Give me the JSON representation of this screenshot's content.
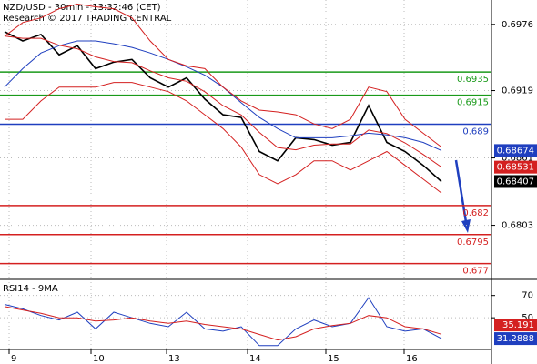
{
  "chart_data": [
    {
      "type": "line",
      "title": "NZD/USD - 30min - 13:32:46 (CET)",
      "subtitle": "Research © 2017 TRADING CENTRAL",
      "x": [
        0,
        2,
        4,
        6,
        8,
        10,
        12,
        14,
        16,
        18,
        20,
        22,
        24,
        26,
        28,
        30,
        32,
        34,
        36,
        38,
        40,
        42,
        44,
        46,
        48
      ],
      "xlim": [
        -0.5,
        53.5
      ],
      "xticks": [
        {
          "value": 0.5,
          "label": "9"
        },
        {
          "value": 9.5,
          "label": "10"
        },
        {
          "value": 17.8,
          "label": "13"
        },
        {
          "value": 26.7,
          "label": "14"
        },
        {
          "value": 35.3,
          "label": "15"
        },
        {
          "value": 43.9,
          "label": "16"
        }
      ],
      "ylim": [
        0.6758,
        0.6997
      ],
      "yticks": [
        0.6976,
        0.6919,
        0.6861,
        0.6803
      ],
      "grid": true,
      "series": [
        {
          "color": "#000000",
          "tag": true,
          "values": [
            0.69697,
            0.69617,
            0.69673,
            0.69498,
            0.69577,
            0.69379,
            0.69435,
            0.69458,
            0.693,
            0.6922,
            0.693,
            0.69117,
            0.68982,
            0.68958,
            0.68665,
            0.68585,
            0.68784,
            0.68768,
            0.6872,
            0.68744,
            0.69062,
            0.68744,
            0.68665,
            0.68546,
            0.68407
          ]
        },
        {
          "color": "#1f3fbf",
          "tag": true,
          "values": [
            0.6922,
            0.69379,
            0.69514,
            0.69577,
            0.69617,
            0.69617,
            0.69593,
            0.69562,
            0.69514,
            0.69458,
            0.69395,
            0.69323,
            0.6922,
            0.69085,
            0.68958,
            0.68863,
            0.68784,
            0.68784,
            0.68784,
            0.688,
            0.68823,
            0.68808,
            0.68784,
            0.68744,
            0.68674
          ]
        },
        {
          "color": "#d42020",
          "tag": true,
          "values": [
            0.6966,
            0.6964,
            0.6964,
            0.6958,
            0.6955,
            0.6948,
            0.6944,
            0.6943,
            0.6936,
            0.693,
            0.6927,
            0.6918,
            0.6906,
            0.6898,
            0.6883,
            0.687,
            0.6868,
            0.6872,
            0.6873,
            0.6873,
            0.6885,
            0.6882,
            0.6874,
            0.6864,
            0.68531
          ]
        },
        {
          "color": "#d42020",
          "tag": false,
          "values": [
            0.69657,
            0.69776,
            0.69816,
            0.69895,
            0.69935,
            0.69911,
            0.69895,
            0.69816,
            0.69617,
            0.69458,
            0.69403,
            0.69379,
            0.6922,
            0.69101,
            0.69022,
            0.69006,
            0.68982,
            0.68903,
            0.68863,
            0.68943,
            0.6922,
            0.69181,
            0.68943,
            0.68823,
            0.68704
          ]
        },
        {
          "color": "#d42020",
          "tag": false,
          "values": [
            0.68943,
            0.68943,
            0.69101,
            0.6922,
            0.6922,
            0.6922,
            0.6926,
            0.6926,
            0.6922,
            0.69181,
            0.69101,
            0.68982,
            0.68863,
            0.68704,
            0.68466,
            0.68387,
            0.68466,
            0.68585,
            0.68585,
            0.68506,
            0.68585,
            0.68665,
            0.68546,
            0.68427,
            0.68308
          ]
        }
      ],
      "levels": [
        {
          "value": 0.6935,
          "color": "#1a9a1a"
        },
        {
          "value": 0.6915,
          "color": "#1a9a1a"
        },
        {
          "value": 0.689,
          "color": "#1f3fbf"
        },
        {
          "value": 0.682,
          "color": "#d42020"
        },
        {
          "value": 0.6795,
          "color": "#d42020"
        },
        {
          "value": 0.677,
          "color": "#d42020"
        }
      ]
    },
    {
      "type": "line",
      "title": "RSI14 - 9MA",
      "x": [
        0,
        2,
        4,
        6,
        8,
        10,
        12,
        14,
        16,
        18,
        20,
        22,
        24,
        26,
        28,
        30,
        32,
        34,
        36,
        38,
        40,
        42,
        44,
        46,
        48
      ],
      "xlim": [
        -0.5,
        53.5
      ],
      "ylim": [
        15,
        82
      ],
      "yticks": [
        70,
        50
      ],
      "grid": true,
      "series": [
        {
          "color": "#1f3fbf",
          "tag": true,
          "values": [
            62,
            58,
            52,
            48,
            55,
            40,
            55,
            50,
            45,
            42,
            55,
            40,
            38,
            42,
            25,
            25,
            40,
            48,
            42,
            45,
            68,
            42,
            38,
            40,
            31.2888
          ]
        },
        {
          "color": "#d42020",
          "tag": true,
          "values": [
            60,
            57,
            54,
            50,
            50,
            47,
            48,
            50,
            47,
            45,
            47,
            44,
            42,
            40,
            35,
            30,
            33,
            40,
            43,
            45,
            52,
            50,
            42,
            40,
            35.191
          ]
        }
      ]
    }
  ]
}
